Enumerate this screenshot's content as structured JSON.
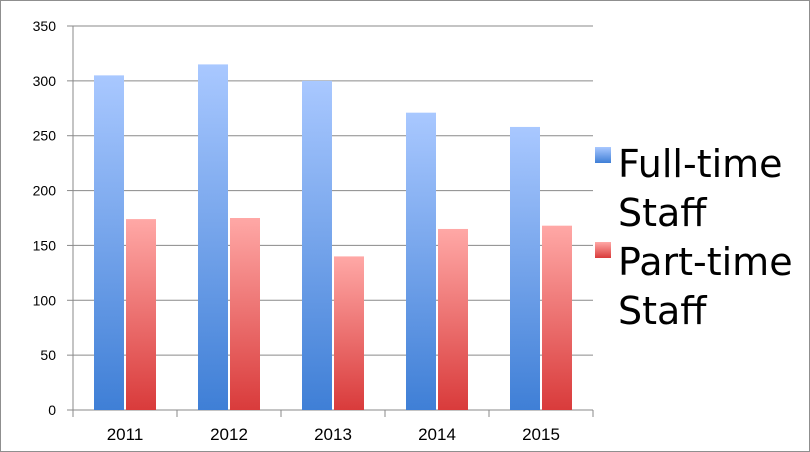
{
  "chart_data": {
    "type": "bar",
    "categories": [
      "2011",
      "2012",
      "2013",
      "2014",
      "2015"
    ],
    "series": [
      {
        "name": "Full-time Staff",
        "values": [
          305,
          315,
          300,
          271,
          258
        ],
        "color": "#4a86e8"
      },
      {
        "name": "Part-time Staff",
        "values": [
          174,
          175,
          140,
          165,
          168
        ],
        "color": "#e8484a"
      }
    ],
    "title": "",
    "xlabel": "",
    "ylabel": "",
    "ylim": [
      0,
      350
    ],
    "yticks": [
      0,
      50,
      100,
      150,
      200,
      250,
      300,
      350
    ],
    "grid": true,
    "legend": {
      "placement": "right",
      "lines": [
        [
          "Full-time",
          "Staff"
        ],
        [
          "Part-time",
          "Staff"
        ]
      ]
    }
  }
}
